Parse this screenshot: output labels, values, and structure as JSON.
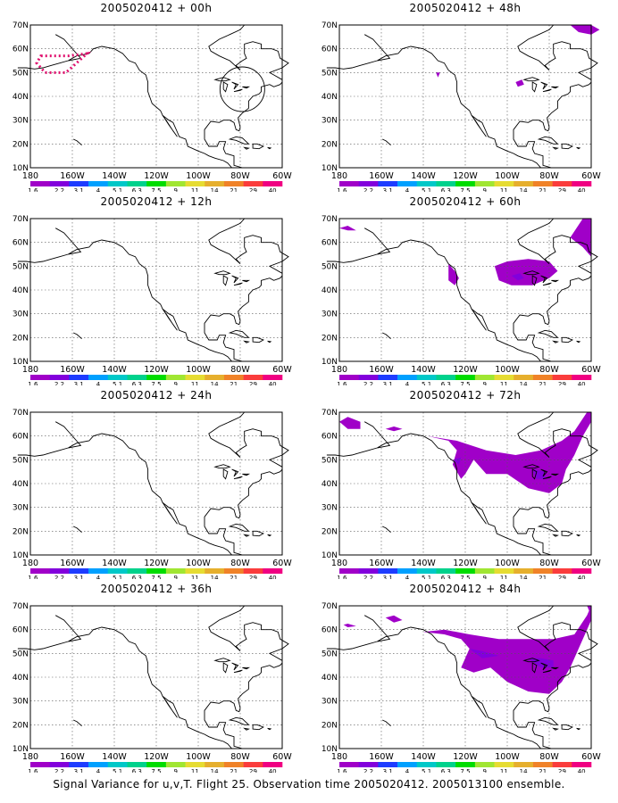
{
  "panels": [
    {
      "title": "2005020412 + 00h"
    },
    {
      "title": "2005020412 + 48h"
    },
    {
      "title": "2005020412 + 12h"
    },
    {
      "title": "2005020412 + 60h"
    },
    {
      "title": "2005020412 + 24h"
    },
    {
      "title": "2005020412 + 72h"
    },
    {
      "title": "2005020412 + 36h"
    },
    {
      "title": "2005020412 + 84h"
    }
  ],
  "lat_labels": [
    "70N",
    "60N",
    "50N",
    "40N",
    "30N",
    "20N",
    "10N"
  ],
  "lon_labels": [
    "180",
    "160W",
    "140W",
    "120W",
    "100W",
    "80W",
    "60W"
  ],
  "colorbar": {
    "labels": [
      "1.6",
      "2.2",
      "3.1",
      "4",
      "5.1",
      "6.3",
      "7.5",
      "9",
      "11",
      "14",
      "21",
      "29",
      "40"
    ],
    "colors": [
      "#a000c8",
      "#8200dc",
      "#1e3cff",
      "#00a0ff",
      "#00c8c8",
      "#00d28c",
      "#00dc00",
      "#a0e632",
      "#e6dc32",
      "#e6af2d",
      "#f08228",
      "#fa3c3c",
      "#f00082"
    ]
  },
  "caption": "Signal Variance for u,v,T. Flight 25. Observation time 2005020412. 2005013100 ensemble."
}
